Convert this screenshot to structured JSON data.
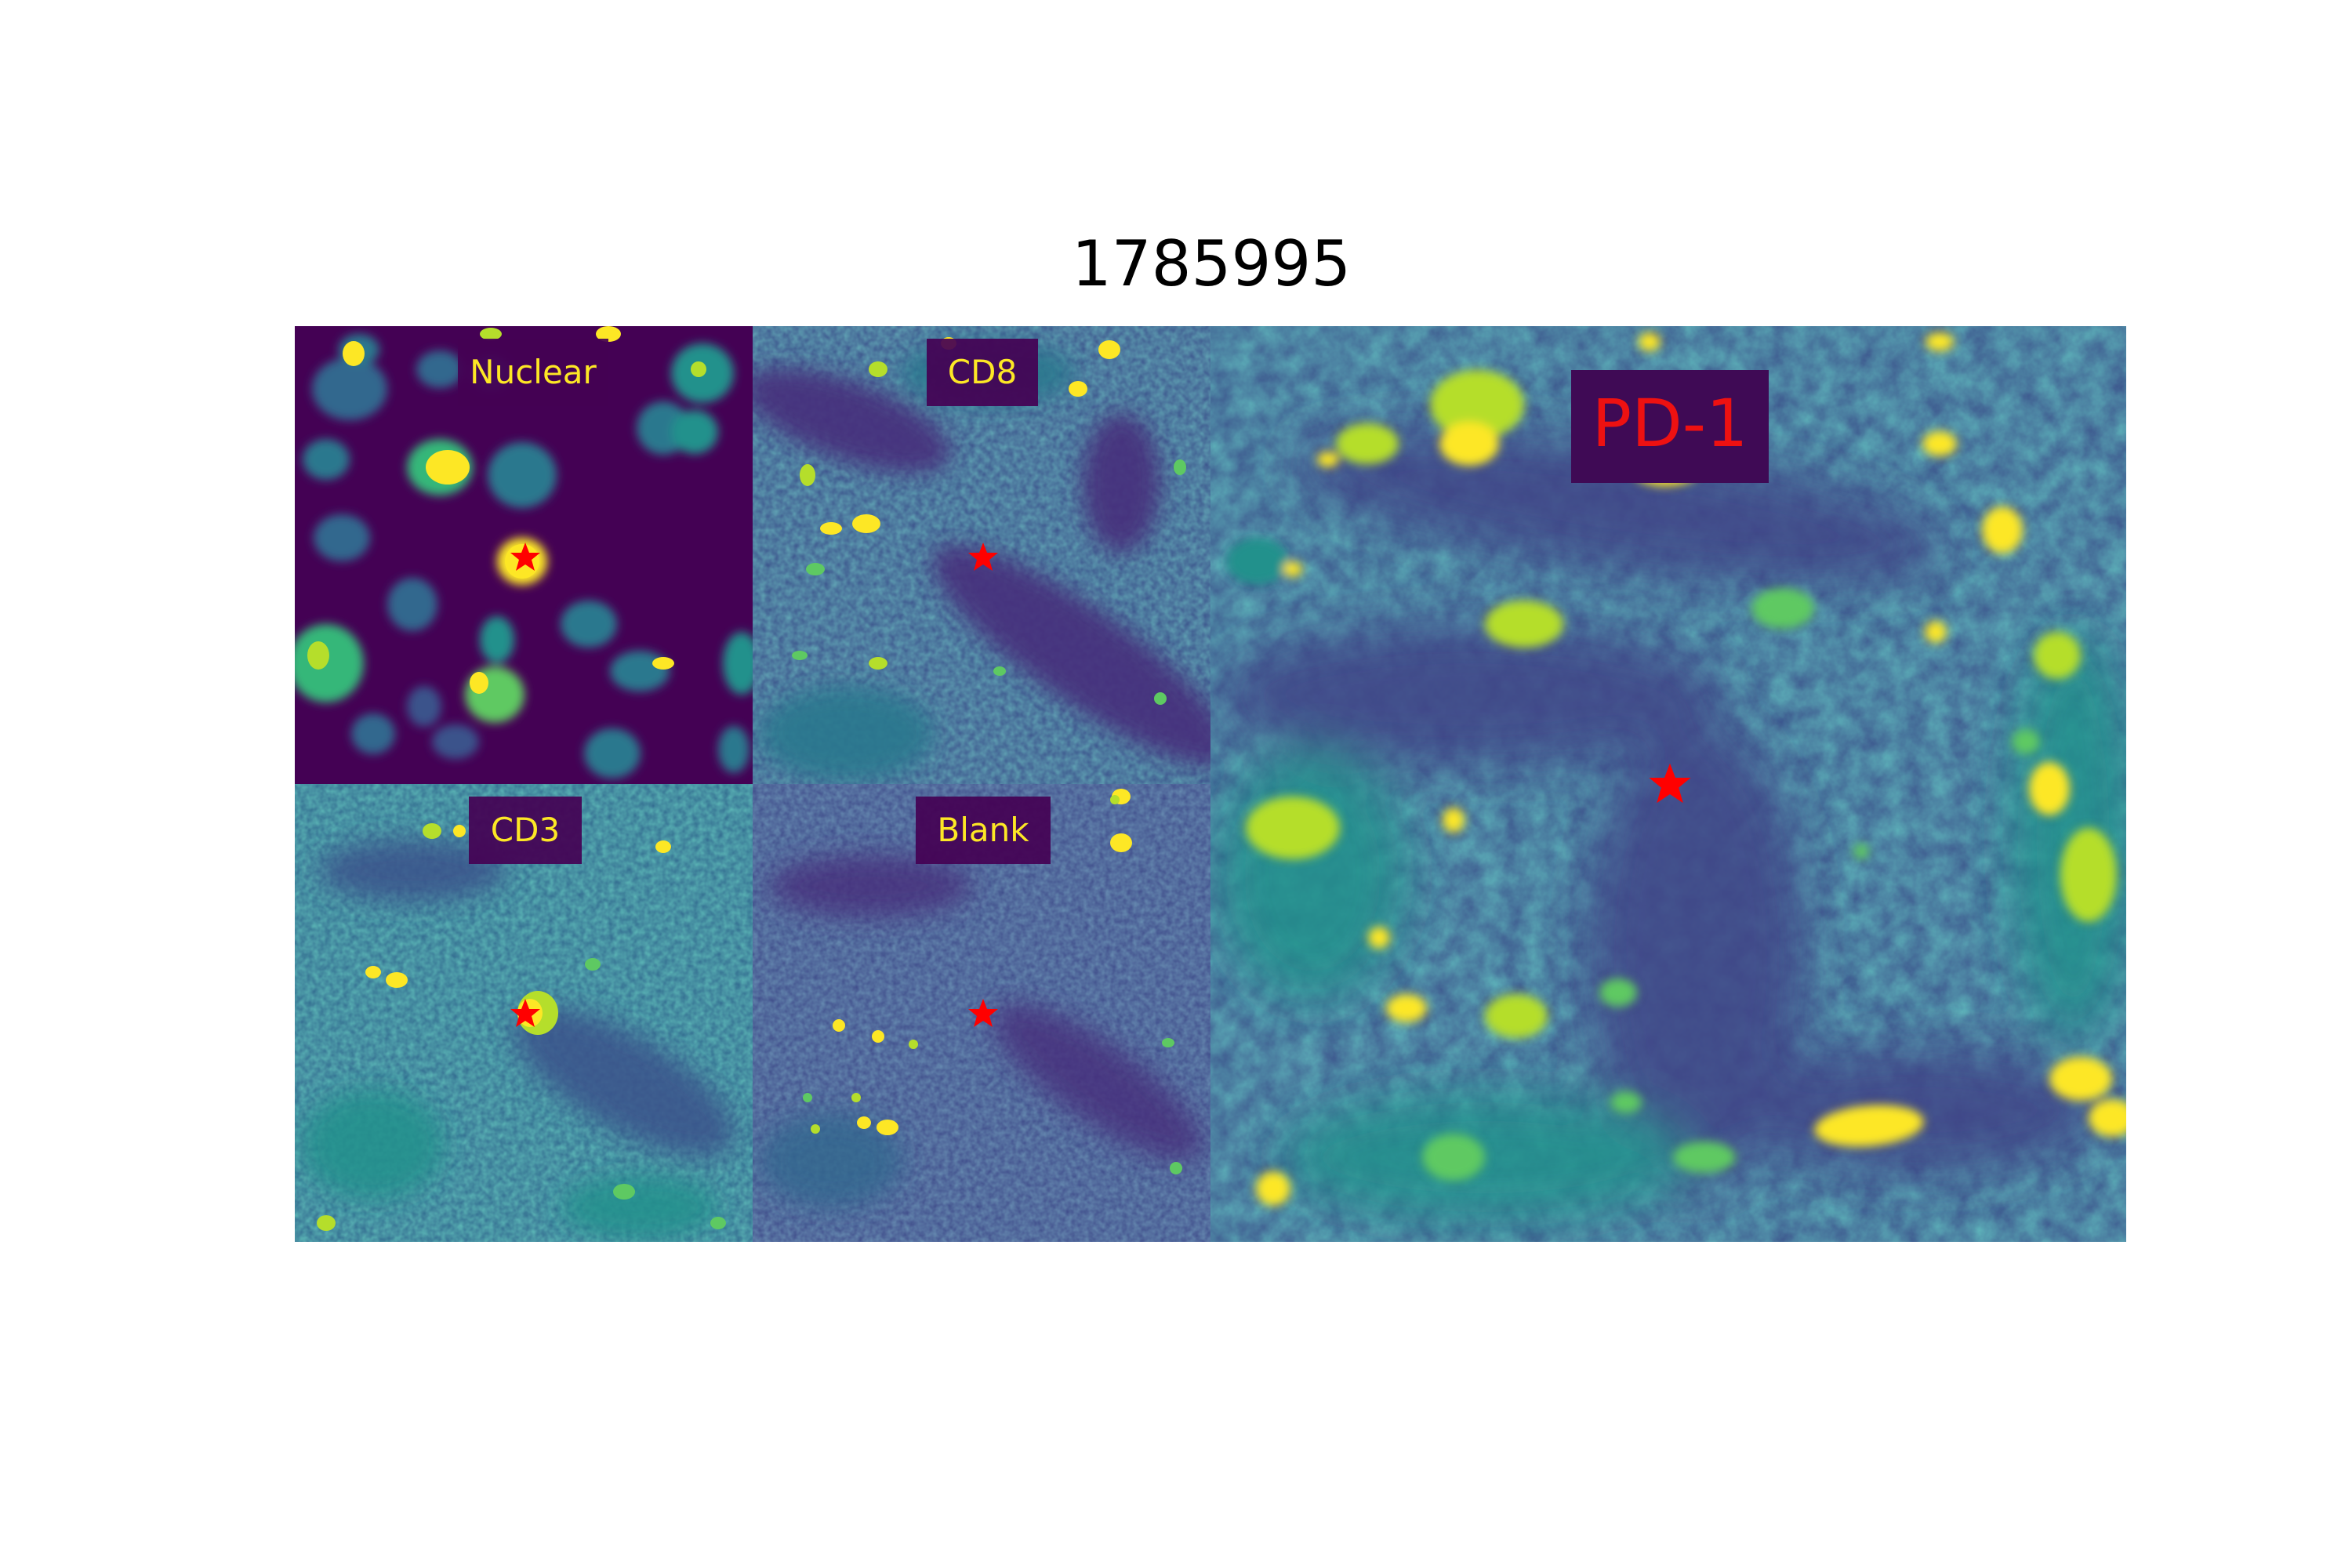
{
  "figure": {
    "title": "1785995"
  },
  "panels": [
    {
      "name": "Nuclear",
      "label": "Nuclear"
    },
    {
      "name": "CD8",
      "label": "CD8"
    },
    {
      "name": "CD3",
      "label": "CD3"
    },
    {
      "name": "Blank",
      "label": "Blank"
    },
    {
      "name": "PD-1",
      "label": "PD-1"
    }
  ],
  "colors": {
    "colormap": "viridis",
    "background_dark": "#440154",
    "mid": "#3b5a8c",
    "teal": "#21918c",
    "bright": "#fde725",
    "marker": "#ff0000",
    "label_text": "#fde725",
    "big_label_text": "#ee1111"
  },
  "marker": {
    "shape": "star-icon"
  }
}
